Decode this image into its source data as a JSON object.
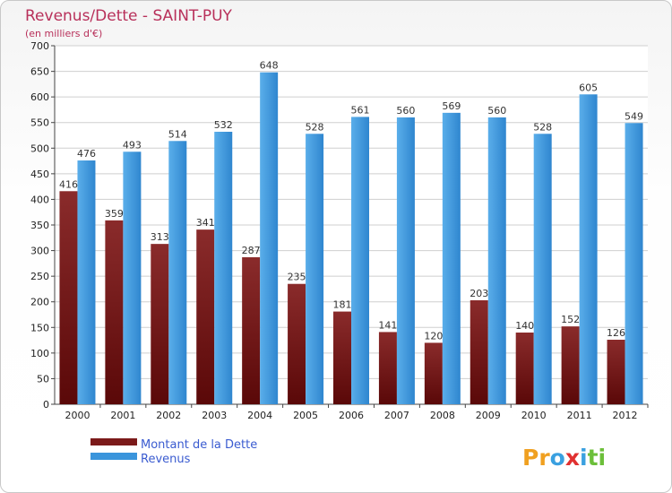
{
  "chart_data": {
    "type": "bar",
    "title": "Revenus/Dette - SAINT-PUY",
    "subtitle": "(en milliers d'€)",
    "categories": [
      "2000",
      "2001",
      "2002",
      "2003",
      "2004",
      "2005",
      "2006",
      "2007",
      "2008",
      "2009",
      "2010",
      "2011",
      "2012"
    ],
    "series": [
      {
        "name": "Montant de la Dette",
        "color": "#7b1a1a",
        "values": [
          416,
          359,
          313,
          341,
          287,
          235,
          181,
          141,
          120,
          203,
          140,
          152,
          126
        ]
      },
      {
        "name": "Revenus",
        "color": "#3a95dc",
        "values": [
          476,
          493,
          514,
          532,
          648,
          528,
          561,
          560,
          569,
          560,
          528,
          605,
          549
        ]
      }
    ],
    "ylim": [
      0,
      700
    ],
    "yticks": [
      0,
      50,
      100,
      150,
      200,
      250,
      300,
      350,
      400,
      450,
      500,
      550,
      600,
      650,
      700
    ],
    "grid": true,
    "legend": "bottom-left"
  },
  "brand": {
    "name": "Proxiti",
    "letters": [
      "P",
      "r",
      "o",
      "x",
      "i",
      "t",
      "i"
    ]
  }
}
